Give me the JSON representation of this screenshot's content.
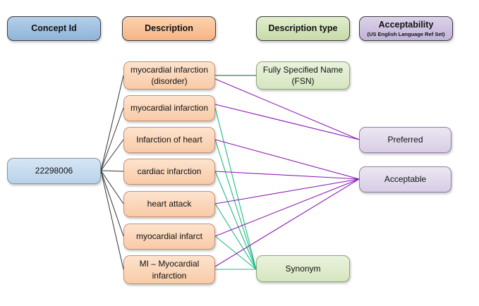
{
  "headers": {
    "concept_id": "Concept Id",
    "description": "Description",
    "description_type": "Description type",
    "acceptability": "Acceptability",
    "acceptability_sub": "(US English Language Ref Set)"
  },
  "concept": {
    "id": "22298006"
  },
  "descriptions": [
    {
      "line1": "myocardial infarction",
      "line2": "(disorder)"
    },
    {
      "line1": "myocardial infarction",
      "line2": ""
    },
    {
      "line1": "Infarction of heart",
      "line2": ""
    },
    {
      "line1": "cardiac infarction",
      "line2": ""
    },
    {
      "line1": "heart attack",
      "line2": ""
    },
    {
      "line1": "myocardial infarct",
      "line2": ""
    },
    {
      "line1": "MI – Myocardial",
      "line2": "infarction"
    }
  ],
  "description_types": [
    {
      "line1": "Fully Specified Name",
      "line2": "(FSN)"
    },
    {
      "line1": "Synonym",
      "line2": ""
    }
  ],
  "acceptability_values": [
    {
      "label": "Preferred"
    },
    {
      "label": "Acceptable"
    }
  ],
  "colors": {
    "concept_links": "#333333",
    "type_links_fsn": "#2e8b3c",
    "type_links_synonym": "#1fba88",
    "acceptability_links": "#8a1fb5"
  }
}
